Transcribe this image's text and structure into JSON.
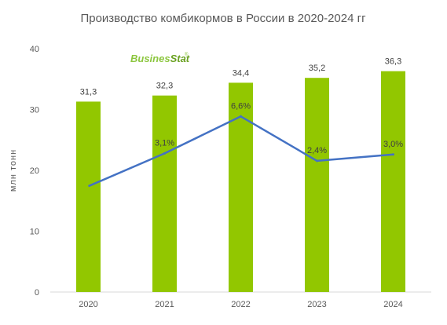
{
  "chart_data": {
    "type": "bar",
    "title": "Производство  комбикормов в России в 2020-2024 гг",
    "xlabel": "",
    "ylabel": "млн тонн",
    "categories": [
      "2020",
      "2021",
      "2022",
      "2023",
      "2024"
    ],
    "series": [
      {
        "type": "bar",
        "values": [
          31.3,
          32.3,
          34.4,
          35.2,
          36.3
        ],
        "labels": [
          "31,3",
          "32,3",
          "34,4",
          "35,2",
          "36,3"
        ],
        "color": "#92c700"
      },
      {
        "type": "line",
        "values": [
          null,
          3.1,
          6.6,
          2.4,
          3.0
        ],
        "labels": [
          "",
          "3,1%",
          "6,6%",
          "2,4%",
          "3,0%"
        ],
        "color": "#4472c4"
      }
    ],
    "ylim": [
      0,
      40
    ],
    "yticks": [
      "0",
      "10",
      "20",
      "30",
      "40"
    ],
    "grid": false,
    "legend": "none"
  },
  "logo": {
    "part1": "Busines",
    "part2": "Stat",
    "mark": "®"
  }
}
